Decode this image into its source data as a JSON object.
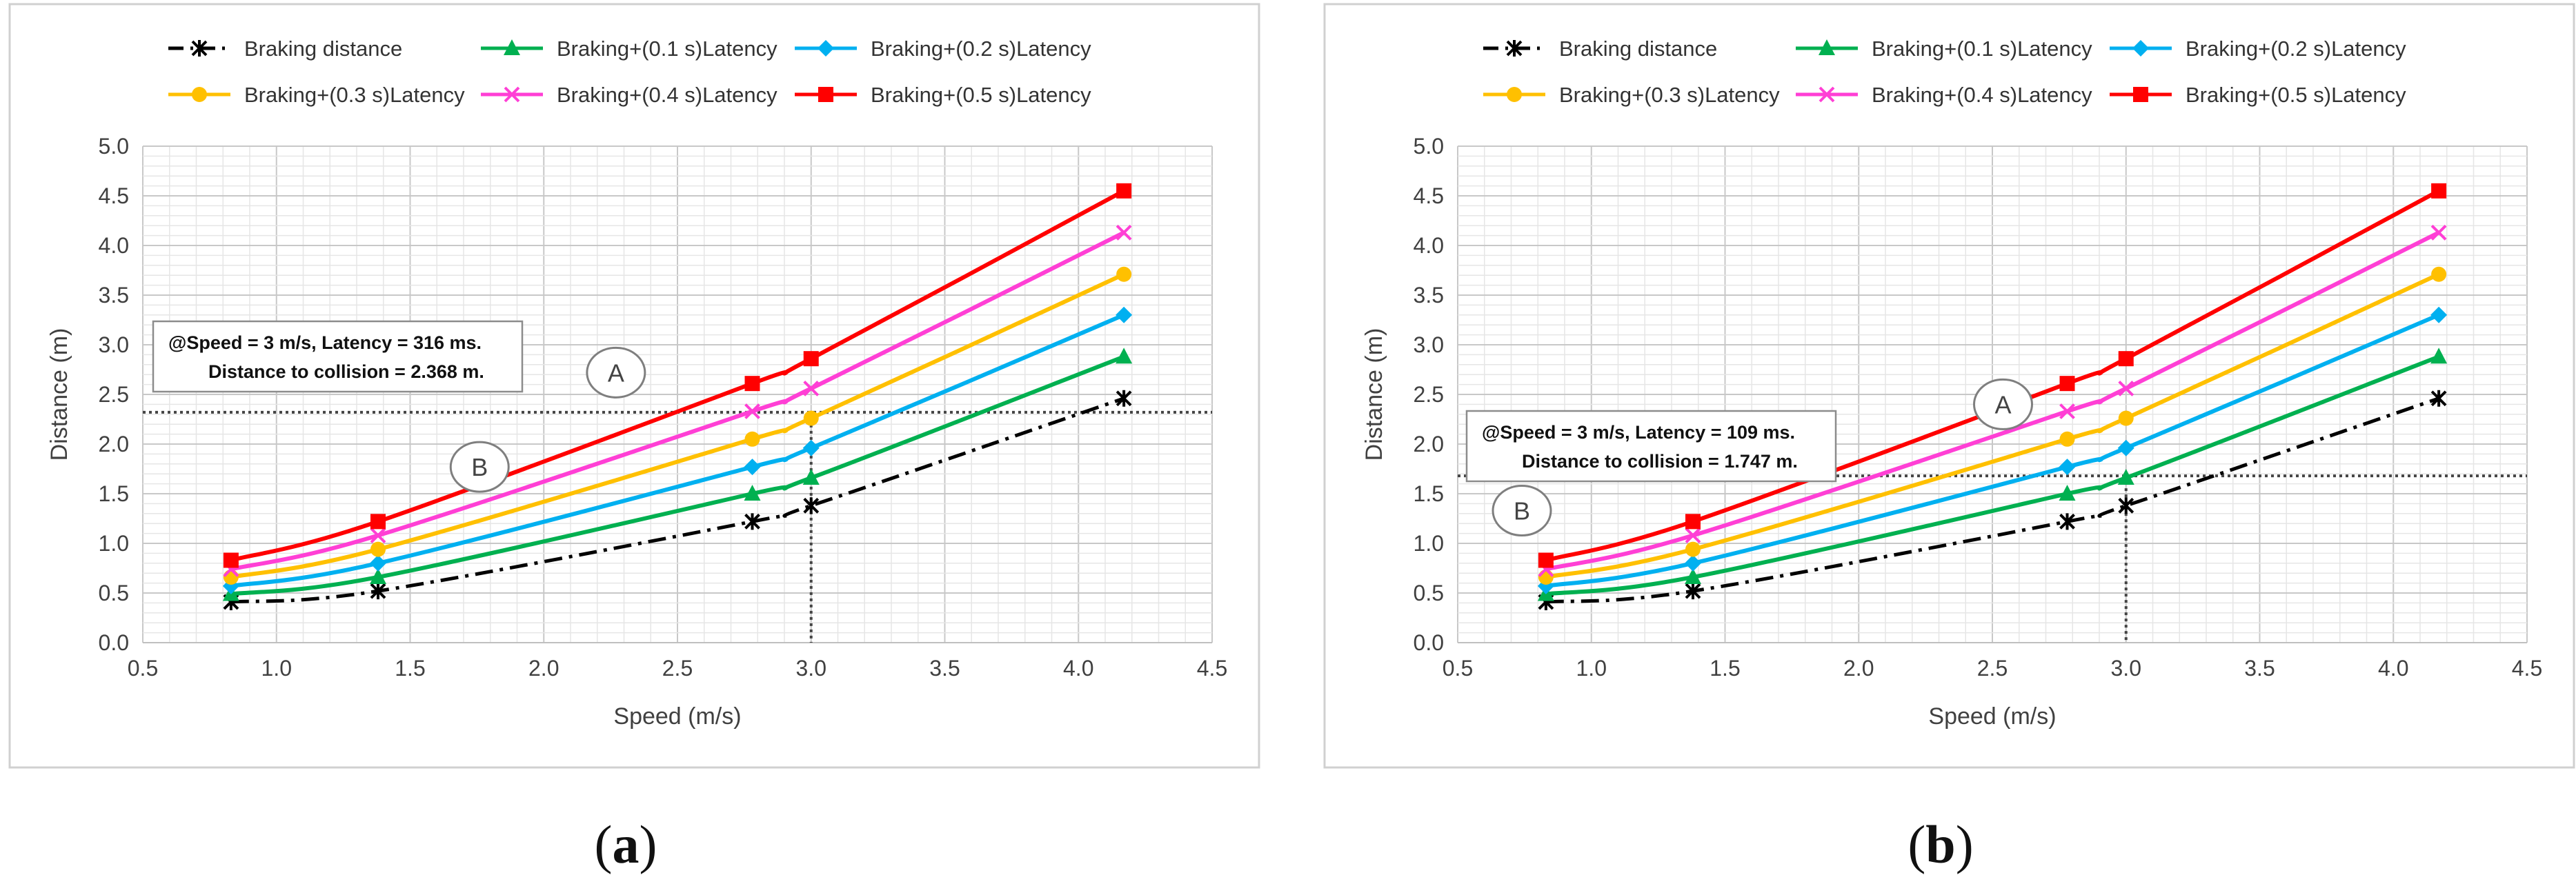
{
  "colors": {
    "braking": "#000000",
    "lat01": "#00b050",
    "lat02": "#00b0f0",
    "lat03": "#ffc000",
    "lat04": "#ff3fd5",
    "lat05": "#ff0000",
    "grid_major": "#c8c8c8",
    "grid_minor": "#e6e6e6",
    "frame": "#d0d0d0",
    "guide": "#444444"
  },
  "figure": {
    "caption_a": "a",
    "caption_b": "b",
    "legend": [
      "Braking distance",
      "Braking+(0.1 s)Latency",
      "Braking+(0.2 s)Latency",
      "Braking+(0.3 s)Latency",
      "Braking+(0.4 s)Latency",
      "Braking+(0.5 s)Latency"
    ]
  },
  "chart_data": [
    {
      "type": "line",
      "panel": "a",
      "xlabel": "Speed (m/s)",
      "ylabel": "Distance (m)",
      "xlim": [
        0.5,
        4.5
      ],
      "ylim": [
        0.0,
        5.0
      ],
      "xticks": [
        "0.5",
        "1.0",
        "1.5",
        "2.0",
        "2.5",
        "3.0",
        "3.5",
        "4.0",
        "4.5"
      ],
      "yticks": [
        "0.0",
        "0.5",
        "1.0",
        "1.5",
        "2.0",
        "2.5",
        "3.0",
        "3.5",
        "4.0",
        "4.5",
        "5.0"
      ],
      "grid": true,
      "legend_position": "top",
      "x": [
        0.83,
        1.38,
        2.78,
        3.0,
        4.17
      ],
      "series": [
        {
          "name": "Braking distance",
          "color_key": "braking",
          "marker": "star",
          "dash": "dashdot",
          "values": [
            0.41,
            0.52,
            1.22,
            1.38,
            2.46
          ]
        },
        {
          "name": "Braking+(0.1 s)Latency",
          "color_key": "lat01",
          "marker": "triangle",
          "dash": "solid",
          "values": [
            0.49,
            0.66,
            1.5,
            1.66,
            2.88
          ]
        },
        {
          "name": "Braking+(0.2 s)Latency",
          "color_key": "lat02",
          "marker": "diamond",
          "dash": "solid",
          "values": [
            0.57,
            0.8,
            1.77,
            1.96,
            3.3
          ]
        },
        {
          "name": "Braking+(0.3 s)Latency",
          "color_key": "lat03",
          "marker": "circle",
          "dash": "solid",
          "values": [
            0.66,
            0.94,
            2.05,
            2.26,
            3.71
          ]
        },
        {
          "name": "Braking+(0.4 s)Latency",
          "color_key": "lat04",
          "marker": "x",
          "dash": "solid",
          "values": [
            0.74,
            1.08,
            2.33,
            2.56,
            4.13
          ]
        },
        {
          "name": "Braking+(0.5 s)Latency",
          "color_key": "lat05",
          "marker": "square",
          "dash": "solid",
          "values": [
            0.83,
            1.22,
            2.61,
            2.86,
            4.55
          ]
        }
      ],
      "guide": {
        "x": 3.0,
        "y": 2.32
      },
      "annotation_line1": "@Speed = 3 m/s, Latency = 316 ms.",
      "annotation_line2": "Distance to collision = 2.368 m.",
      "region_a": {
        "label": "A",
        "x": 2.27,
        "y": 2.72
      },
      "region_b": {
        "label": "B",
        "x": 1.76,
        "y": 1.77
      }
    },
    {
      "type": "line",
      "panel": "b",
      "xlabel": "Speed (m/s)",
      "ylabel": "Distance (m)",
      "xlim": [
        0.5,
        4.5
      ],
      "ylim": [
        0.0,
        5.0
      ],
      "xticks": [
        "0.5",
        "1.0",
        "1.5",
        "2.0",
        "2.5",
        "3.0",
        "3.5",
        "4.0",
        "4.5"
      ],
      "yticks": [
        "0.0",
        "0.5",
        "1.0",
        "1.5",
        "2.0",
        "2.5",
        "3.0",
        "3.5",
        "4.0",
        "4.5",
        "5.0"
      ],
      "grid": true,
      "legend_position": "top",
      "x": [
        0.83,
        1.38,
        2.78,
        3.0,
        4.17
      ],
      "series": [
        {
          "name": "Braking distance",
          "color_key": "braking",
          "marker": "star",
          "dash": "dashdot",
          "values": [
            0.41,
            0.52,
            1.22,
            1.38,
            2.46
          ]
        },
        {
          "name": "Braking+(0.1 s)Latency",
          "color_key": "lat01",
          "marker": "triangle",
          "dash": "solid",
          "values": [
            0.49,
            0.66,
            1.5,
            1.66,
            2.88
          ]
        },
        {
          "name": "Braking+(0.2 s)Latency",
          "color_key": "lat02",
          "marker": "diamond",
          "dash": "solid",
          "values": [
            0.57,
            0.8,
            1.77,
            1.96,
            3.3
          ]
        },
        {
          "name": "Braking+(0.3 s)Latency",
          "color_key": "lat03",
          "marker": "circle",
          "dash": "solid",
          "values": [
            0.66,
            0.94,
            2.05,
            2.26,
            3.71
          ]
        },
        {
          "name": "Braking+(0.4 s)Latency",
          "color_key": "lat04",
          "marker": "x",
          "dash": "solid",
          "values": [
            0.74,
            1.08,
            2.33,
            2.56,
            4.13
          ]
        },
        {
          "name": "Braking+(0.5 s)Latency",
          "color_key": "lat05",
          "marker": "square",
          "dash": "solid",
          "values": [
            0.83,
            1.22,
            2.61,
            2.86,
            4.55
          ]
        }
      ],
      "guide": {
        "x": 3.0,
        "y": 1.68
      },
      "annotation_line1": "@Speed = 3 m/s, Latency = 109 ms.",
      "annotation_line2": "Distance to collision = 1.747 m.",
      "region_a": {
        "label": "A",
        "x": 2.54,
        "y": 2.4
      },
      "region_b": {
        "label": "B",
        "x": 0.74,
        "y": 1.33
      }
    }
  ]
}
